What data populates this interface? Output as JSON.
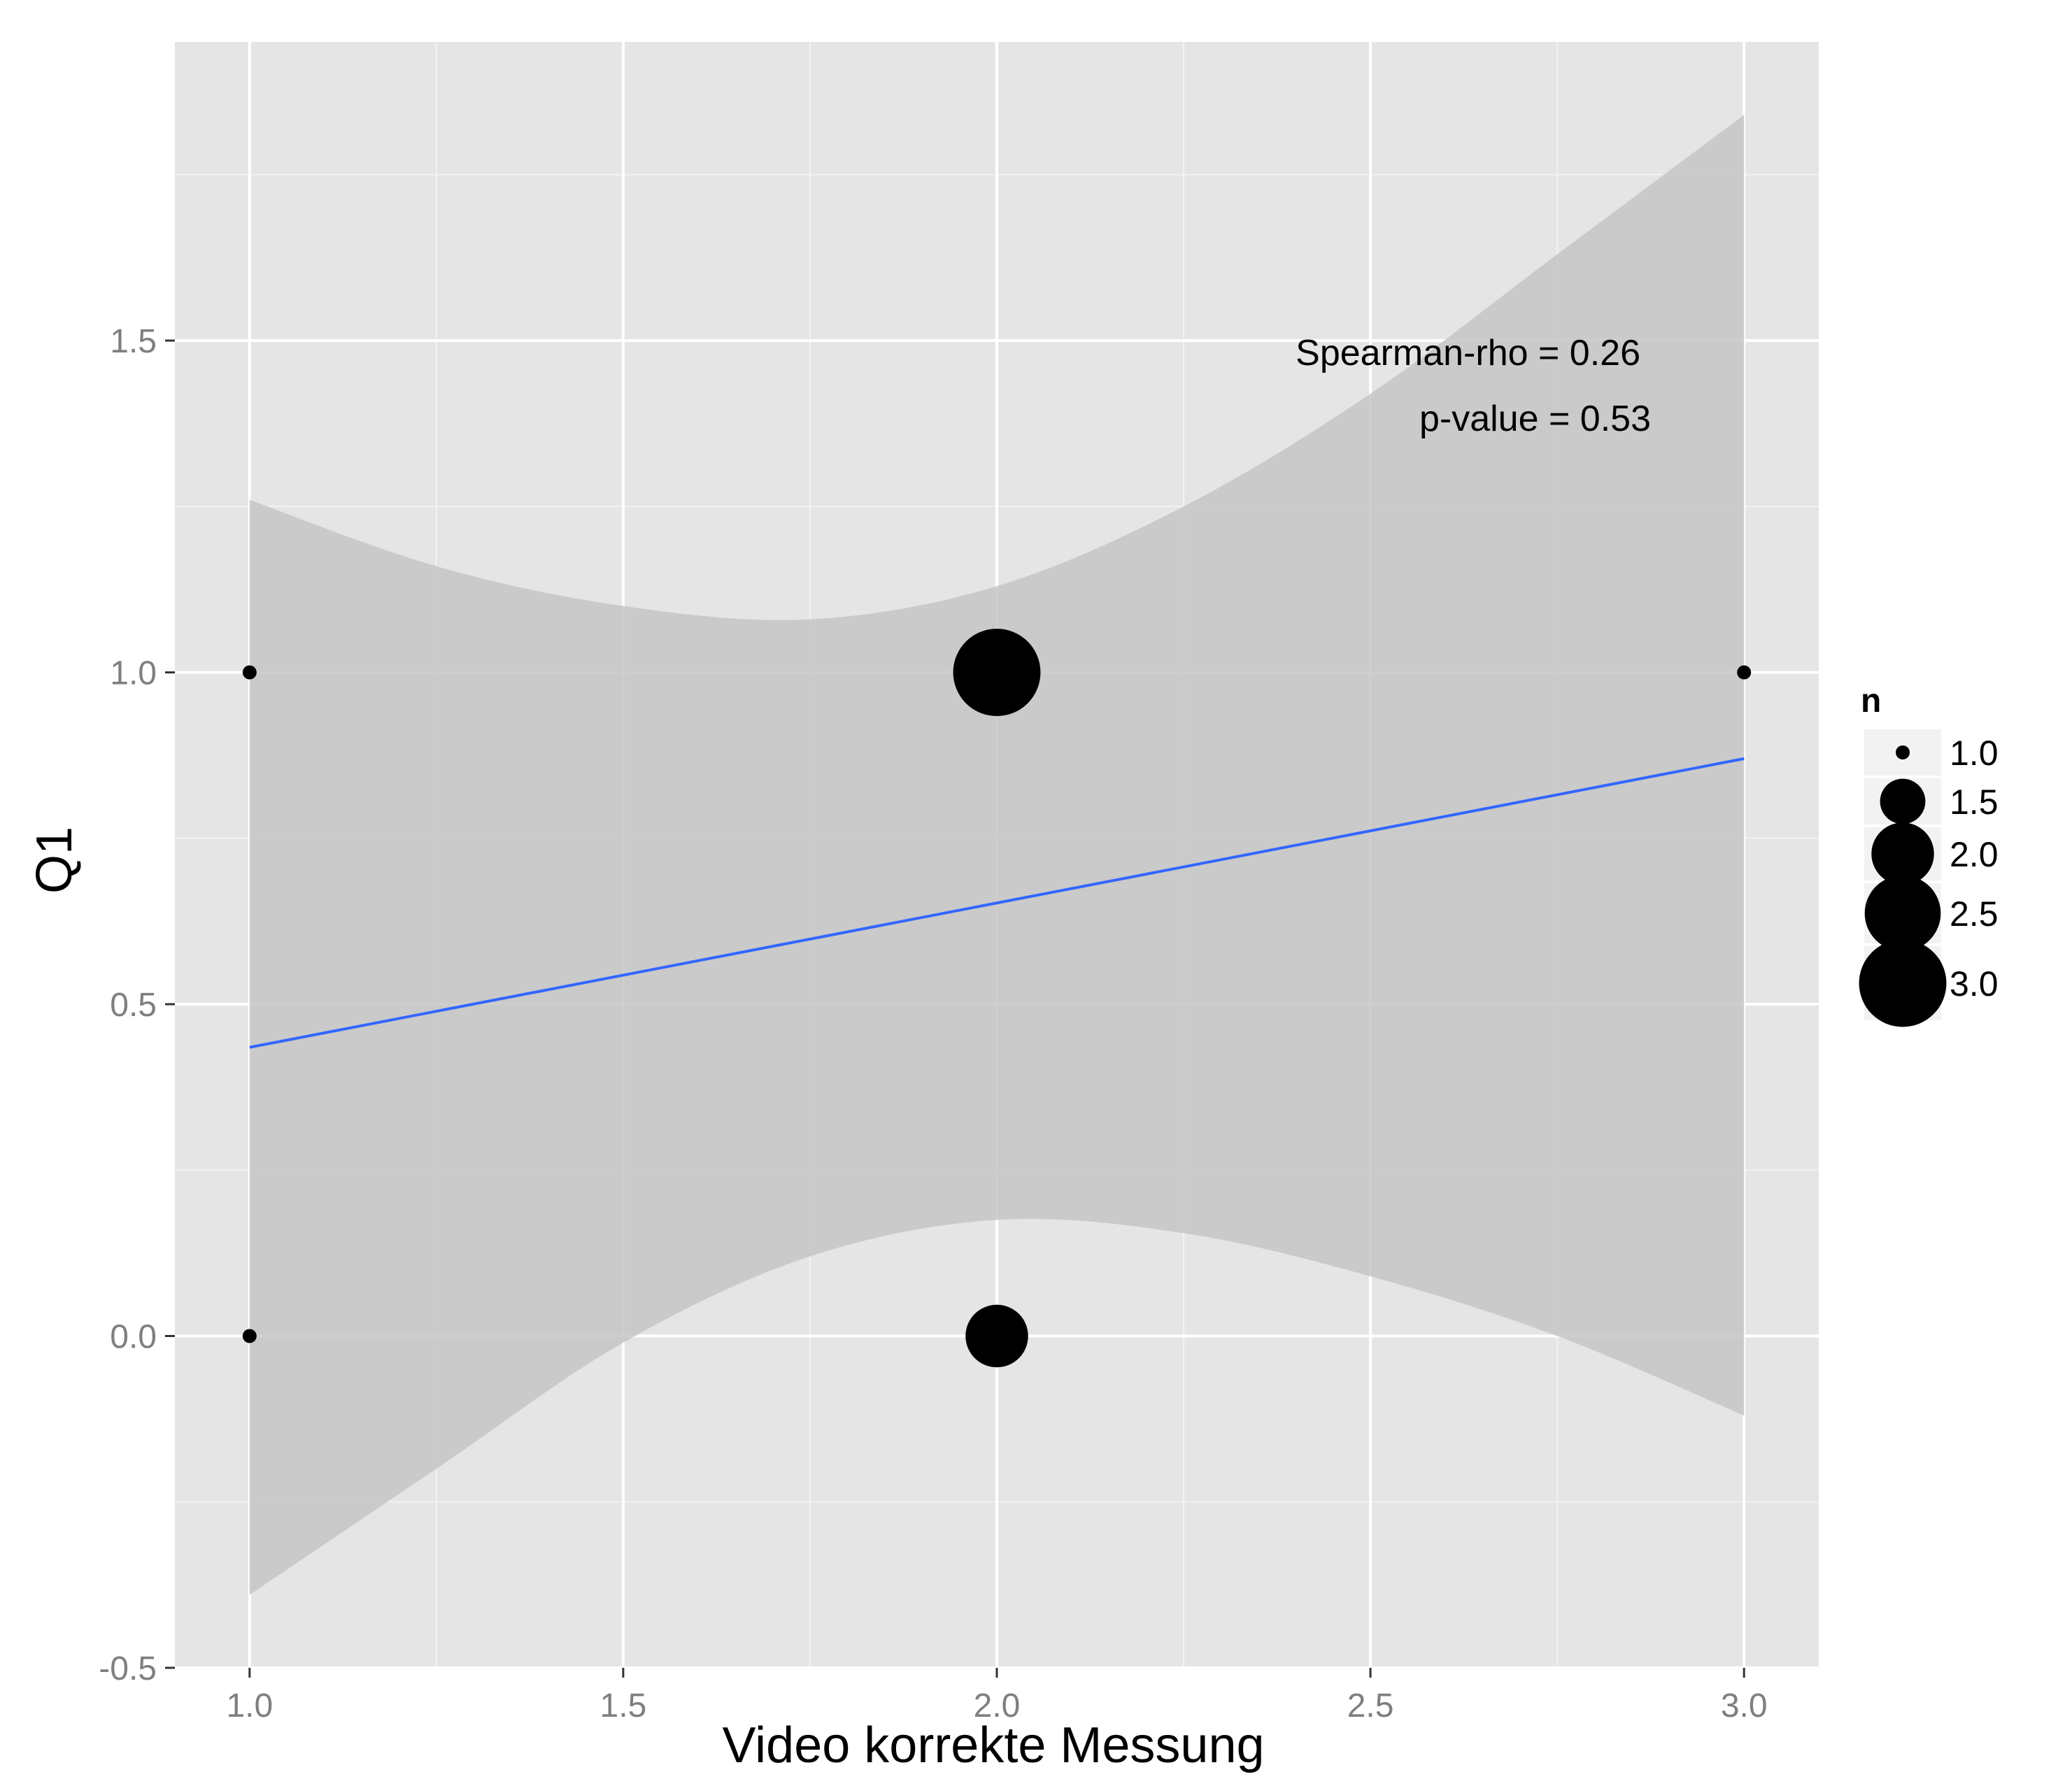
{
  "chart_data": {
    "type": "scatter",
    "xlabel": "Video korrekte Messung",
    "ylabel": "Q1",
    "xlim": [
      0.9,
      3.1
    ],
    "ylim": [
      -0.5,
      1.95
    ],
    "x_ticks": [
      1.0,
      1.5,
      2.0,
      2.5,
      3.0
    ],
    "x_tick_labels": [
      "1.0",
      "1.5",
      "2.0",
      "2.5",
      "3.0"
    ],
    "y_ticks": [
      -0.5,
      0.0,
      0.5,
      1.0,
      1.5
    ],
    "y_tick_labels": [
      "-0.5",
      "0.0",
      "0.5",
      "1.0",
      "1.5"
    ],
    "grid": true,
    "points": [
      {
        "x": 1.0,
        "y": 1.0,
        "n": 1
      },
      {
        "x": 1.0,
        "y": 0.0,
        "n": 1
      },
      {
        "x": 2.0,
        "y": 1.0,
        "n": 3
      },
      {
        "x": 2.0,
        "y": 0.0,
        "n": 2
      },
      {
        "x": 3.0,
        "y": 1.0,
        "n": 1
      }
    ],
    "regression_line": {
      "color": "#3366ff",
      "x": [
        1.0,
        3.0
      ],
      "y": [
        0.435,
        0.87
      ]
    },
    "confidence_band": {
      "color": "#c6c6c6",
      "x": [
        1.0,
        1.25,
        1.5,
        1.75,
        2.0,
        2.25,
        2.5,
        2.75,
        3.0
      ],
      "upper": [
        1.26,
        1.16,
        1.1,
        1.08,
        1.13,
        1.25,
        1.42,
        1.63,
        1.84
      ],
      "lower": [
        -0.39,
        -0.2,
        -0.01,
        0.12,
        0.175,
        0.155,
        0.09,
        0.0,
        -0.12
      ]
    },
    "annotations": [
      "Spearman-rho = 0.26",
      "p-value = 0.53"
    ],
    "legend": {
      "title": "n",
      "position": "right",
      "entries": [
        {
          "label": "1.0",
          "value": 1.0
        },
        {
          "label": "1.5",
          "value": 1.5
        },
        {
          "label": "2.0",
          "value": 2.0
        },
        {
          "label": "2.5",
          "value": 2.5
        },
        {
          "label": "3.0",
          "value": 3.0
        }
      ]
    },
    "colors": {
      "panel": "#e5e5e5",
      "grid_major": "#ffffff",
      "grid_minor": "#f2f2f2",
      "point": "#000000"
    }
  }
}
